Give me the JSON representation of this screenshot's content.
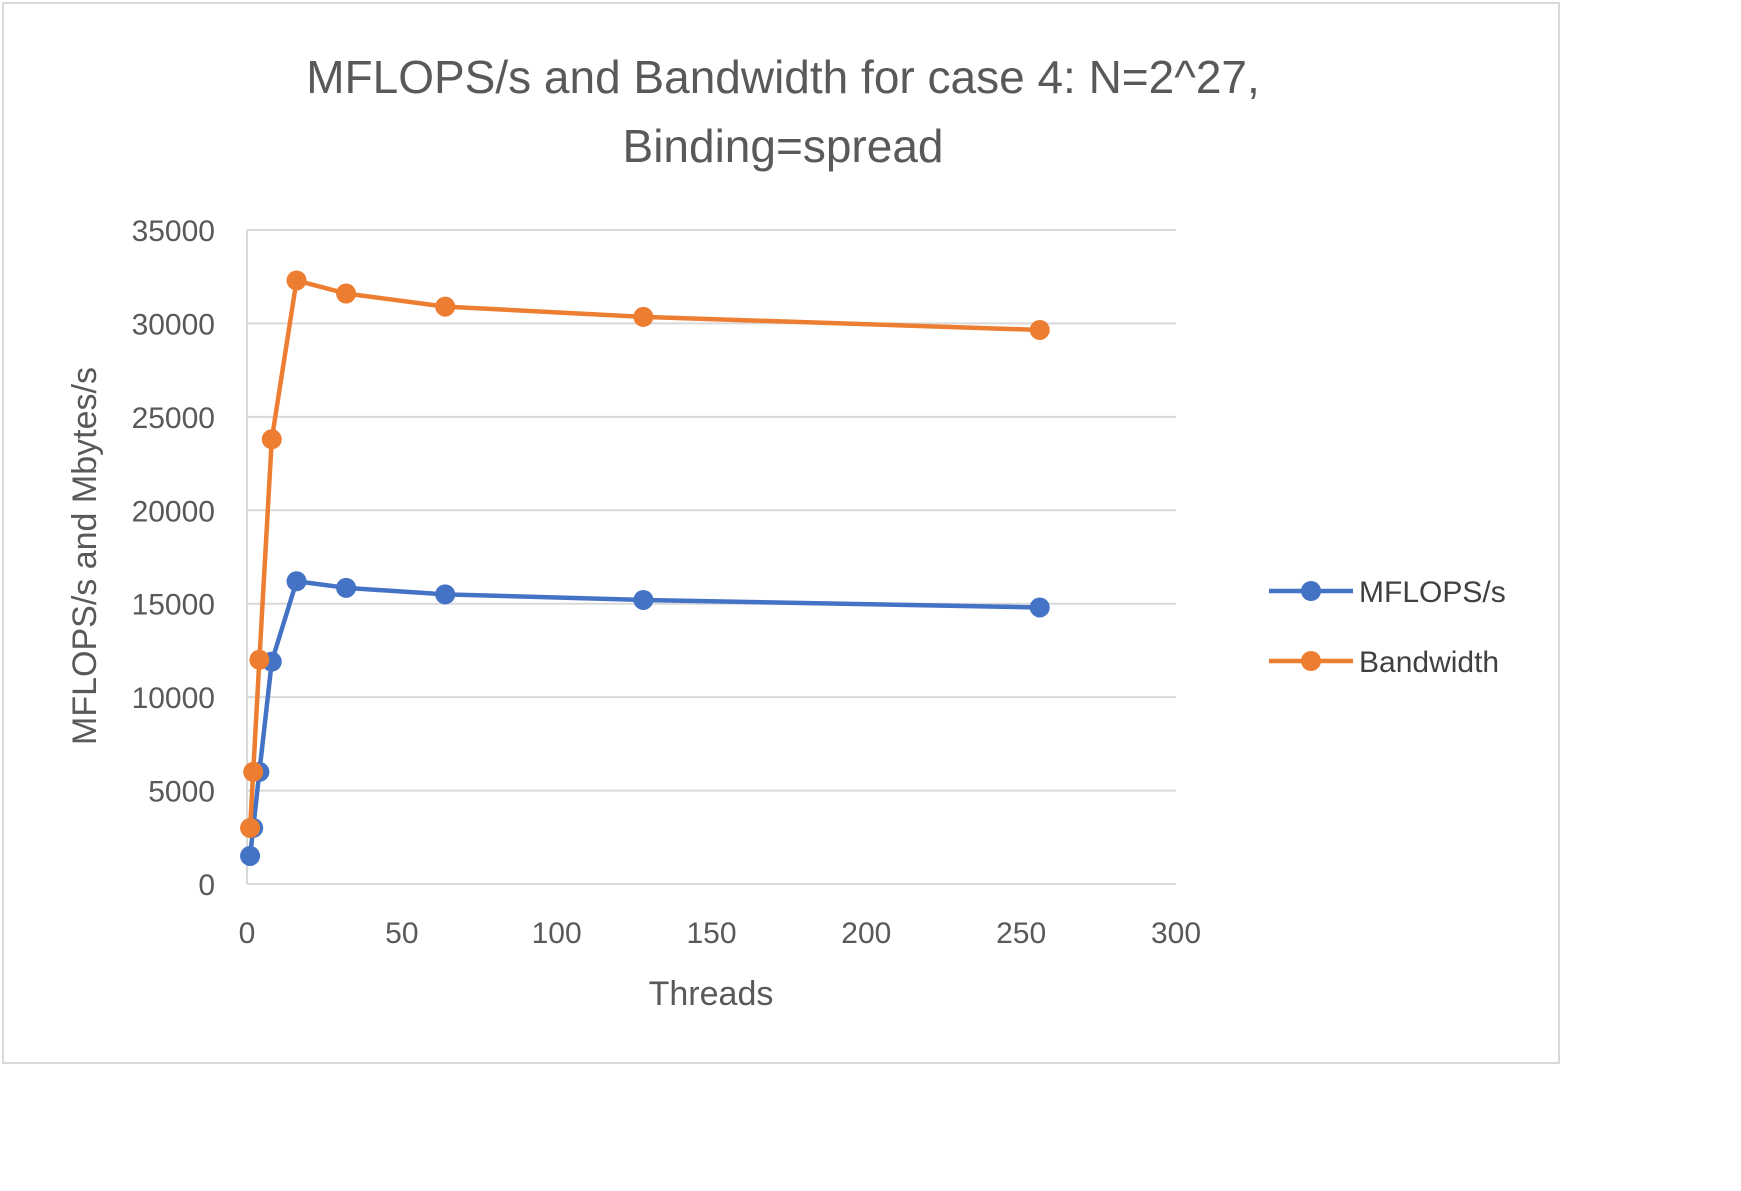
{
  "chart_data": {
    "type": "scatter",
    "title_lines": [
      "MFLOPS/s and Bandwidth for case 4: N=2^27,",
      "Binding=spread"
    ],
    "xlabel": "Threads",
    "ylabel": "MFLOPS/s and Mbytes/s",
    "xlim": [
      0,
      300
    ],
    "ylim": [
      0,
      35000
    ],
    "x_ticks": [
      "0",
      "50",
      "100",
      "150",
      "200",
      "250",
      "300"
    ],
    "y_ticks": [
      "0",
      "5000",
      "10000",
      "15000",
      "20000",
      "25000",
      "30000",
      "35000"
    ],
    "grid": "horizontal",
    "legend_position": "right",
    "series": [
      {
        "name": "MFLOPS/s",
        "color": "#4472C4",
        "points": [
          [
            1,
            1500
          ],
          [
            2,
            3000
          ],
          [
            4,
            6000
          ],
          [
            8,
            11900
          ],
          [
            16,
            16200
          ],
          [
            32,
            15850
          ],
          [
            64,
            15500
          ],
          [
            128,
            15200
          ],
          [
            256,
            14800
          ]
        ]
      },
      {
        "name": "Bandwidth",
        "color": "#ED7D31",
        "points": [
          [
            1,
            3000
          ],
          [
            2,
            6000
          ],
          [
            4,
            12000
          ],
          [
            8,
            23800
          ],
          [
            16,
            32300
          ],
          [
            32,
            31600
          ],
          [
            64,
            30900
          ],
          [
            128,
            30350
          ],
          [
            256,
            29650
          ]
        ]
      }
    ]
  }
}
